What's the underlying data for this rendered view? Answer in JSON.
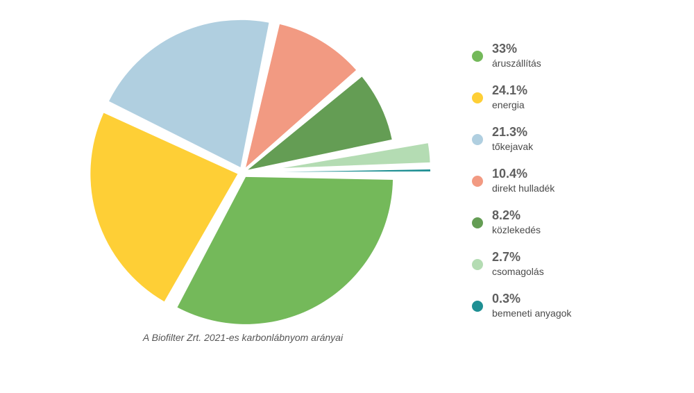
{
  "chart_data": {
    "type": "pie",
    "caption": "A Biofilter Zrt. 2021-es karbonlábnyom arányai",
    "slices": [
      {
        "label": "áruszállítás",
        "value": 33,
        "value_text": "33%",
        "color": "#74b95a"
      },
      {
        "label": "energia",
        "value": 24.1,
        "value_text": "24.1%",
        "color": "#fecf36"
      },
      {
        "label": "tőkejavak",
        "value": 21.3,
        "value_text": "21.3%",
        "color": "#b0cfe0"
      },
      {
        "label": "direkt hulladék",
        "value": 10.4,
        "value_text": "10.4%",
        "color": "#f29a82"
      },
      {
        "label": "közlekedés",
        "value": 8.2,
        "value_text": "8.2%",
        "color": "#649d54"
      },
      {
        "label": "csomagolás",
        "value": 2.7,
        "value_text": "2.7%",
        "color": "#b4dcb3"
      },
      {
        "label": "bemeneti anyagok",
        "value": 0.3,
        "value_text": "0.3%",
        "color": "#1e8f93"
      }
    ],
    "exploded": [
      "csomagolás",
      "bemeneti anyagok"
    ]
  }
}
